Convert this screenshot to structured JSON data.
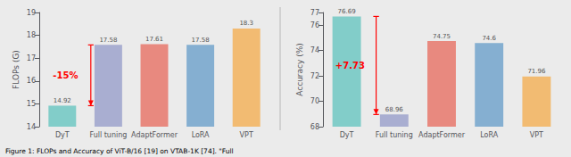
{
  "chart_data": [
    {
      "type": "bar",
      "categories": [
        "DyT",
        "Full tuning",
        "AdaptFormer",
        "LoRA",
        "VPT"
      ],
      "values": [
        14.92,
        17.58,
        17.61,
        17.58,
        18.3
      ],
      "colors": [
        "#82cdc9",
        "#a9aed1",
        "#e8897f",
        "#85afd1",
        "#f2bb72"
      ],
      "ylabel": "FLOPs (G)",
      "ylim": [
        14,
        19
      ],
      "yticks": [
        14,
        15,
        16,
        17,
        18,
        19
      ],
      "grid": false,
      "data_labels": true,
      "annotation": {
        "text": "-15%",
        "y_top": 17.58,
        "y_bottom": 14.92,
        "color": "red"
      }
    },
    {
      "type": "bar",
      "categories": [
        "DyT",
        "Full tuning",
        "AdaptFormer",
        "LoRA",
        "VPT"
      ],
      "values": [
        76.69,
        68.96,
        74.75,
        74.6,
        71.96
      ],
      "colors": [
        "#82cdc9",
        "#a9aed1",
        "#e8897f",
        "#85afd1",
        "#f2bb72"
      ],
      "ylabel": "Accuracy (%)",
      "ylim": [
        68,
        77
      ],
      "yticks": [
        68,
        70,
        72,
        74,
        76
      ],
      "grid": false,
      "data_labels": true,
      "annotation": {
        "text": "+7.73",
        "y_top": 76.69,
        "y_bottom": 68.96,
        "color": "red"
      }
    }
  ],
  "caption": "Figure 1: FLOPs and Accuracy of ViT-B/16 [19] on VTAB-1K [74]. \"Full"
}
